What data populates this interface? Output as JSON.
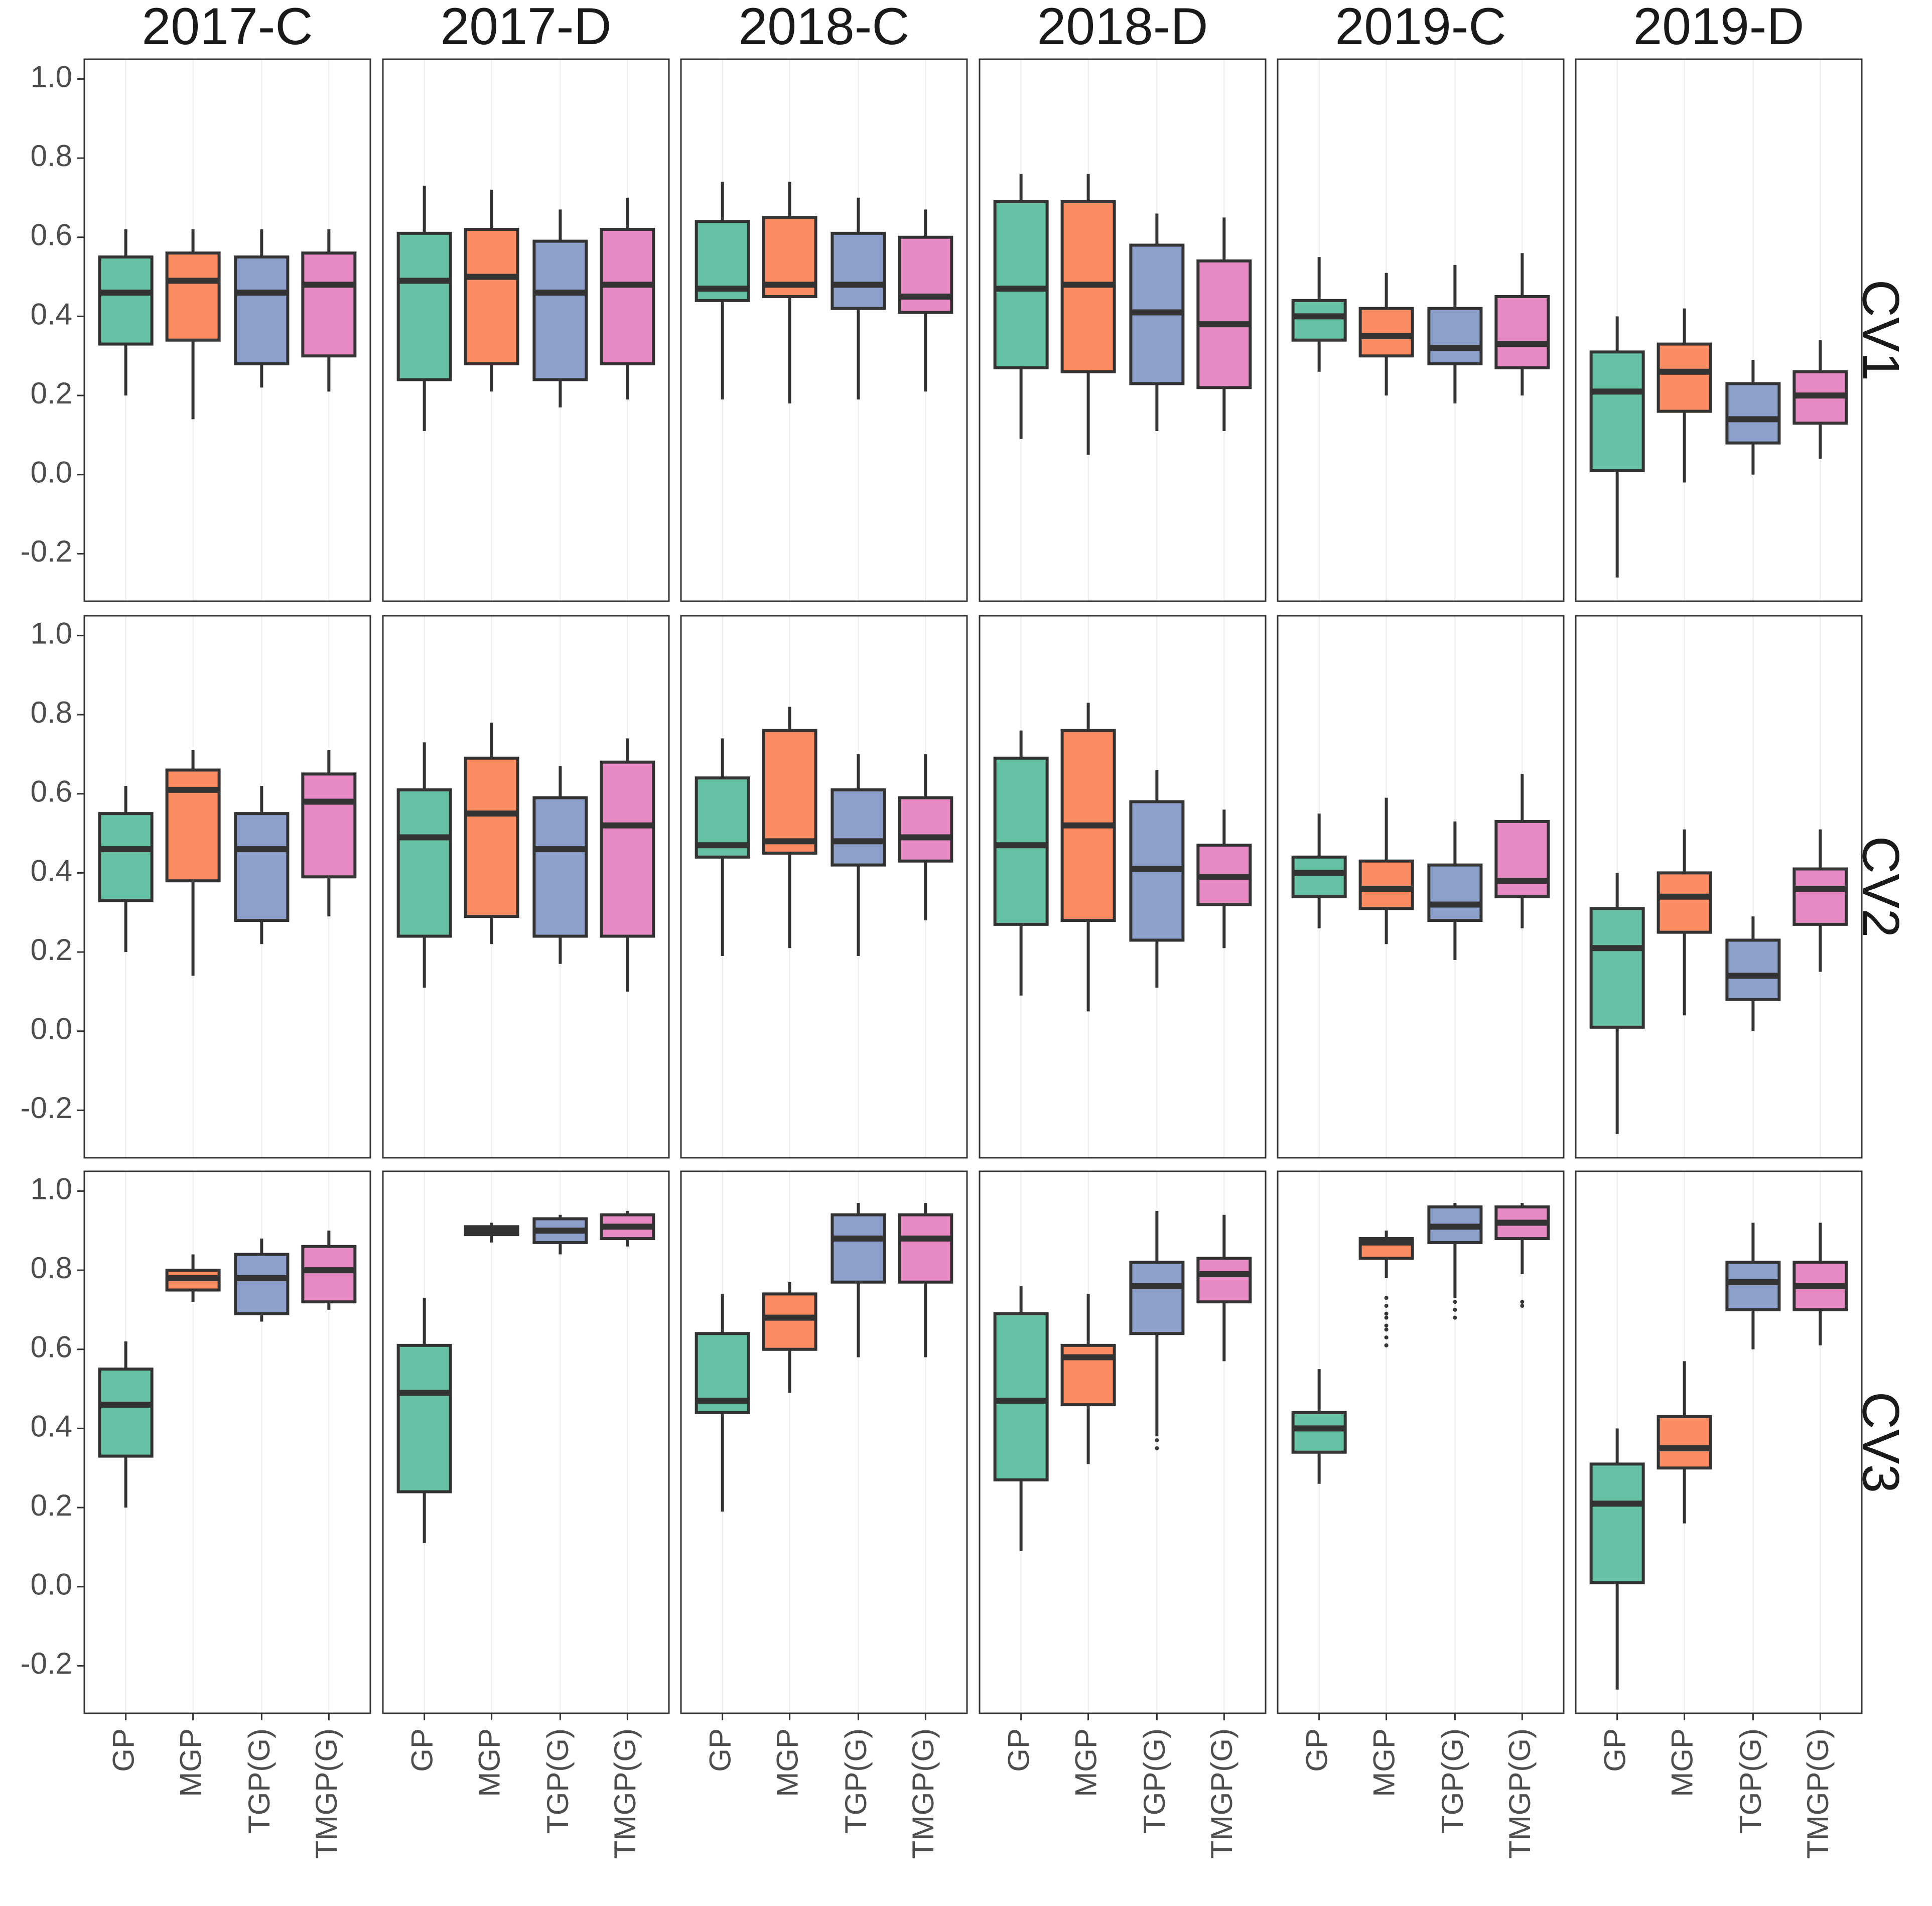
{
  "chart_data": {
    "type": "boxplot",
    "title": "",
    "xlabel": "",
    "ylabel": "",
    "ylim": [
      -0.32,
      1.05
    ],
    "yticks": [
      "-0.2",
      "0.0",
      "0.2",
      "0.4",
      "0.6",
      "0.8",
      "1.0"
    ],
    "columns": [
      "2017-C",
      "2017-D",
      "2018-C",
      "2018-D",
      "2019-C",
      "2019-D"
    ],
    "rows": [
      "CV1",
      "CV2",
      "CV3"
    ],
    "categories": [
      "GP",
      "MGP",
      "TGP(G)",
      "TMGP(G)"
    ],
    "colors": {
      "GP": "#66c2a5",
      "MGP": "#fc8d62",
      "TGP(G)": "#8da0cb",
      "TMGP(G)": "#e78ac3"
    },
    "panels": [
      {
        "row": "CV1",
        "column": "2017-C",
        "boxes": [
          {
            "category": "GP",
            "whisker_low": 0.2,
            "q1": 0.33,
            "median": 0.46,
            "q3": 0.55,
            "whisker_high": 0.62,
            "outliers": []
          },
          {
            "category": "MGP",
            "whisker_low": 0.14,
            "q1": 0.34,
            "median": 0.49,
            "q3": 0.56,
            "whisker_high": 0.62,
            "outliers": []
          },
          {
            "category": "TGP(G)",
            "whisker_low": 0.22,
            "q1": 0.28,
            "median": 0.46,
            "q3": 0.55,
            "whisker_high": 0.62,
            "outliers": []
          },
          {
            "category": "TMGP(G)",
            "whisker_low": 0.21,
            "q1": 0.3,
            "median": 0.48,
            "q3": 0.56,
            "whisker_high": 0.62,
            "outliers": []
          }
        ]
      },
      {
        "row": "CV1",
        "column": "2017-D",
        "boxes": [
          {
            "category": "GP",
            "whisker_low": 0.11,
            "q1": 0.24,
            "median": 0.49,
            "q3": 0.61,
            "whisker_high": 0.73,
            "outliers": []
          },
          {
            "category": "MGP",
            "whisker_low": 0.21,
            "q1": 0.28,
            "median": 0.5,
            "q3": 0.62,
            "whisker_high": 0.72,
            "outliers": []
          },
          {
            "category": "TGP(G)",
            "whisker_low": 0.17,
            "q1": 0.24,
            "median": 0.46,
            "q3": 0.59,
            "whisker_high": 0.67,
            "outliers": []
          },
          {
            "category": "TMGP(G)",
            "whisker_low": 0.19,
            "q1": 0.28,
            "median": 0.48,
            "q3": 0.62,
            "whisker_high": 0.7,
            "outliers": []
          }
        ]
      },
      {
        "row": "CV1",
        "column": "2018-C",
        "boxes": [
          {
            "category": "GP",
            "whisker_low": 0.19,
            "q1": 0.44,
            "median": 0.47,
            "q3": 0.64,
            "whisker_high": 0.74,
            "outliers": []
          },
          {
            "category": "MGP",
            "whisker_low": 0.18,
            "q1": 0.45,
            "median": 0.48,
            "q3": 0.65,
            "whisker_high": 0.74,
            "outliers": []
          },
          {
            "category": "TGP(G)",
            "whisker_low": 0.19,
            "q1": 0.42,
            "median": 0.48,
            "q3": 0.61,
            "whisker_high": 0.7,
            "outliers": []
          },
          {
            "category": "TMGP(G)",
            "whisker_low": 0.21,
            "q1": 0.41,
            "median": 0.45,
            "q3": 0.6,
            "whisker_high": 0.67,
            "outliers": []
          }
        ]
      },
      {
        "row": "CV1",
        "column": "2018-D",
        "boxes": [
          {
            "category": "GP",
            "whisker_low": 0.09,
            "q1": 0.27,
            "median": 0.47,
            "q3": 0.69,
            "whisker_high": 0.76,
            "outliers": []
          },
          {
            "category": "MGP",
            "whisker_low": 0.05,
            "q1": 0.26,
            "median": 0.48,
            "q3": 0.69,
            "whisker_high": 0.76,
            "outliers": []
          },
          {
            "category": "TGP(G)",
            "whisker_low": 0.11,
            "q1": 0.23,
            "median": 0.41,
            "q3": 0.58,
            "whisker_high": 0.66,
            "outliers": []
          },
          {
            "category": "TMGP(G)",
            "whisker_low": 0.11,
            "q1": 0.22,
            "median": 0.38,
            "q3": 0.54,
            "whisker_high": 0.65,
            "outliers": []
          }
        ]
      },
      {
        "row": "CV1",
        "column": "2019-C",
        "boxes": [
          {
            "category": "GP",
            "whisker_low": 0.26,
            "q1": 0.34,
            "median": 0.4,
            "q3": 0.44,
            "whisker_high": 0.55,
            "outliers": []
          },
          {
            "category": "MGP",
            "whisker_low": 0.2,
            "q1": 0.3,
            "median": 0.35,
            "q3": 0.42,
            "whisker_high": 0.51,
            "outliers": []
          },
          {
            "category": "TGP(G)",
            "whisker_low": 0.18,
            "q1": 0.28,
            "median": 0.32,
            "q3": 0.42,
            "whisker_high": 0.53,
            "outliers": []
          },
          {
            "category": "TMGP(G)",
            "whisker_low": 0.2,
            "q1": 0.27,
            "median": 0.33,
            "q3": 0.45,
            "whisker_high": 0.56,
            "outliers": []
          }
        ]
      },
      {
        "row": "CV1",
        "column": "2019-D",
        "boxes": [
          {
            "category": "GP",
            "whisker_low": -0.26,
            "q1": 0.01,
            "median": 0.21,
            "q3": 0.31,
            "whisker_high": 0.4,
            "outliers": []
          },
          {
            "category": "MGP",
            "whisker_low": -0.02,
            "q1": 0.16,
            "median": 0.26,
            "q3": 0.33,
            "whisker_high": 0.42,
            "outliers": []
          },
          {
            "category": "TGP(G)",
            "whisker_low": 0.0,
            "q1": 0.08,
            "median": 0.14,
            "q3": 0.23,
            "whisker_high": 0.29,
            "outliers": []
          },
          {
            "category": "TMGP(G)",
            "whisker_low": 0.04,
            "q1": 0.13,
            "median": 0.2,
            "q3": 0.26,
            "whisker_high": 0.34,
            "outliers": []
          }
        ]
      },
      {
        "row": "CV2",
        "column": "2017-C",
        "boxes": [
          {
            "category": "GP",
            "whisker_low": 0.2,
            "q1": 0.33,
            "median": 0.46,
            "q3": 0.55,
            "whisker_high": 0.62,
            "outliers": []
          },
          {
            "category": "MGP",
            "whisker_low": 0.14,
            "q1": 0.38,
            "median": 0.61,
            "q3": 0.66,
            "whisker_high": 0.71,
            "outliers": []
          },
          {
            "category": "TGP(G)",
            "whisker_low": 0.22,
            "q1": 0.28,
            "median": 0.46,
            "q3": 0.55,
            "whisker_high": 0.62,
            "outliers": []
          },
          {
            "category": "TMGP(G)",
            "whisker_low": 0.29,
            "q1": 0.39,
            "median": 0.58,
            "q3": 0.65,
            "whisker_high": 0.71,
            "outliers": []
          }
        ]
      },
      {
        "row": "CV2",
        "column": "2017-D",
        "boxes": [
          {
            "category": "GP",
            "whisker_low": 0.11,
            "q1": 0.24,
            "median": 0.49,
            "q3": 0.61,
            "whisker_high": 0.73,
            "outliers": []
          },
          {
            "category": "MGP",
            "whisker_low": 0.22,
            "q1": 0.29,
            "median": 0.55,
            "q3": 0.69,
            "whisker_high": 0.78,
            "outliers": []
          },
          {
            "category": "TGP(G)",
            "whisker_low": 0.17,
            "q1": 0.24,
            "median": 0.46,
            "q3": 0.59,
            "whisker_high": 0.67,
            "outliers": []
          },
          {
            "category": "TMGP(G)",
            "whisker_low": 0.1,
            "q1": 0.24,
            "median": 0.52,
            "q3": 0.68,
            "whisker_high": 0.74,
            "outliers": []
          }
        ]
      },
      {
        "row": "CV2",
        "column": "2018-C",
        "boxes": [
          {
            "category": "GP",
            "whisker_low": 0.19,
            "q1": 0.44,
            "median": 0.47,
            "q3": 0.64,
            "whisker_high": 0.74,
            "outliers": []
          },
          {
            "category": "MGP",
            "whisker_low": 0.21,
            "q1": 0.45,
            "median": 0.48,
            "q3": 0.76,
            "whisker_high": 0.82,
            "outliers": []
          },
          {
            "category": "TGP(G)",
            "whisker_low": 0.19,
            "q1": 0.42,
            "median": 0.48,
            "q3": 0.61,
            "whisker_high": 0.7,
            "outliers": []
          },
          {
            "category": "TMGP(G)",
            "whisker_low": 0.28,
            "q1": 0.43,
            "median": 0.49,
            "q3": 0.59,
            "whisker_high": 0.7,
            "outliers": []
          }
        ]
      },
      {
        "row": "CV2",
        "column": "2018-D",
        "boxes": [
          {
            "category": "GP",
            "whisker_low": 0.09,
            "q1": 0.27,
            "median": 0.47,
            "q3": 0.69,
            "whisker_high": 0.76,
            "outliers": []
          },
          {
            "category": "MGP",
            "whisker_low": 0.05,
            "q1": 0.28,
            "median": 0.52,
            "q3": 0.76,
            "whisker_high": 0.83,
            "outliers": []
          },
          {
            "category": "TGP(G)",
            "whisker_low": 0.11,
            "q1": 0.23,
            "median": 0.41,
            "q3": 0.58,
            "whisker_high": 0.66,
            "outliers": []
          },
          {
            "category": "TMGP(G)",
            "whisker_low": 0.21,
            "q1": 0.32,
            "median": 0.39,
            "q3": 0.47,
            "whisker_high": 0.56,
            "outliers": []
          }
        ]
      },
      {
        "row": "CV2",
        "column": "2019-C",
        "boxes": [
          {
            "category": "GP",
            "whisker_low": 0.26,
            "q1": 0.34,
            "median": 0.4,
            "q3": 0.44,
            "whisker_high": 0.55,
            "outliers": []
          },
          {
            "category": "MGP",
            "whisker_low": 0.22,
            "q1": 0.31,
            "median": 0.36,
            "q3": 0.43,
            "whisker_high": 0.59,
            "outliers": []
          },
          {
            "category": "TGP(G)",
            "whisker_low": 0.18,
            "q1": 0.28,
            "median": 0.32,
            "q3": 0.42,
            "whisker_high": 0.53,
            "outliers": []
          },
          {
            "category": "TMGP(G)",
            "whisker_low": 0.26,
            "q1": 0.34,
            "median": 0.38,
            "q3": 0.53,
            "whisker_high": 0.65,
            "outliers": []
          }
        ]
      },
      {
        "row": "CV2",
        "column": "2019-D",
        "boxes": [
          {
            "category": "GP",
            "whisker_low": -0.26,
            "q1": 0.01,
            "median": 0.21,
            "q3": 0.31,
            "whisker_high": 0.4,
            "outliers": []
          },
          {
            "category": "MGP",
            "whisker_low": 0.04,
            "q1": 0.25,
            "median": 0.34,
            "q3": 0.4,
            "whisker_high": 0.51,
            "outliers": []
          },
          {
            "category": "TGP(G)",
            "whisker_low": 0.0,
            "q1": 0.08,
            "median": 0.14,
            "q3": 0.23,
            "whisker_high": 0.29,
            "outliers": []
          },
          {
            "category": "TMGP(G)",
            "whisker_low": 0.15,
            "q1": 0.27,
            "median": 0.36,
            "q3": 0.41,
            "whisker_high": 0.51,
            "outliers": []
          }
        ]
      },
      {
        "row": "CV3",
        "column": "2017-C",
        "boxes": [
          {
            "category": "GP",
            "whisker_low": 0.2,
            "q1": 0.33,
            "median": 0.46,
            "q3": 0.55,
            "whisker_high": 0.62,
            "outliers": []
          },
          {
            "category": "MGP",
            "whisker_low": 0.72,
            "q1": 0.75,
            "median": 0.78,
            "q3": 0.8,
            "whisker_high": 0.84,
            "outliers": []
          },
          {
            "category": "TGP(G)",
            "whisker_low": 0.67,
            "q1": 0.69,
            "median": 0.78,
            "q3": 0.84,
            "whisker_high": 0.88,
            "outliers": []
          },
          {
            "category": "TMGP(G)",
            "whisker_low": 0.7,
            "q1": 0.72,
            "median": 0.8,
            "q3": 0.86,
            "whisker_high": 0.9,
            "outliers": []
          }
        ]
      },
      {
        "row": "CV3",
        "column": "2017-D",
        "boxes": [
          {
            "category": "GP",
            "whisker_low": 0.11,
            "q1": 0.24,
            "median": 0.49,
            "q3": 0.61,
            "whisker_high": 0.73,
            "outliers": []
          },
          {
            "category": "MGP",
            "whisker_low": 0.87,
            "q1": 0.89,
            "median": 0.9,
            "q3": 0.91,
            "whisker_high": 0.92,
            "outliers": []
          },
          {
            "category": "TGP(G)",
            "whisker_low": 0.84,
            "q1": 0.87,
            "median": 0.9,
            "q3": 0.93,
            "whisker_high": 0.94,
            "outliers": []
          },
          {
            "category": "TMGP(G)",
            "whisker_low": 0.86,
            "q1": 0.88,
            "median": 0.91,
            "q3": 0.94,
            "whisker_high": 0.95,
            "outliers": []
          }
        ]
      },
      {
        "row": "CV3",
        "column": "2018-C",
        "boxes": [
          {
            "category": "GP",
            "whisker_low": 0.19,
            "q1": 0.44,
            "median": 0.47,
            "q3": 0.64,
            "whisker_high": 0.74,
            "outliers": []
          },
          {
            "category": "MGP",
            "whisker_low": 0.49,
            "q1": 0.6,
            "median": 0.68,
            "q3": 0.74,
            "whisker_high": 0.77,
            "outliers": []
          },
          {
            "category": "TGP(G)",
            "whisker_low": 0.58,
            "q1": 0.77,
            "median": 0.88,
            "q3": 0.94,
            "whisker_high": 0.97,
            "outliers": []
          },
          {
            "category": "TMGP(G)",
            "whisker_low": 0.58,
            "q1": 0.77,
            "median": 0.88,
            "q3": 0.94,
            "whisker_high": 0.97,
            "outliers": []
          }
        ]
      },
      {
        "row": "CV3",
        "column": "2018-D",
        "boxes": [
          {
            "category": "GP",
            "whisker_low": 0.09,
            "q1": 0.27,
            "median": 0.47,
            "q3": 0.69,
            "whisker_high": 0.76,
            "outliers": []
          },
          {
            "category": "MGP",
            "whisker_low": 0.31,
            "q1": 0.46,
            "median": 0.58,
            "q3": 0.61,
            "whisker_high": 0.74,
            "outliers": []
          },
          {
            "category": "TGP(G)",
            "whisker_low": 0.38,
            "q1": 0.64,
            "median": 0.76,
            "q3": 0.82,
            "whisker_high": 0.95,
            "outliers": [
              0.35,
              0.37
            ]
          },
          {
            "category": "TMGP(G)",
            "whisker_low": 0.57,
            "q1": 0.72,
            "median": 0.79,
            "q3": 0.83,
            "whisker_high": 0.94,
            "outliers": []
          }
        ]
      },
      {
        "row": "CV3",
        "column": "2019-C",
        "boxes": [
          {
            "category": "GP",
            "whisker_low": 0.26,
            "q1": 0.34,
            "median": 0.4,
            "q3": 0.44,
            "whisker_high": 0.55,
            "outliers": []
          },
          {
            "category": "MGP",
            "whisker_low": 0.78,
            "q1": 0.83,
            "median": 0.87,
            "q3": 0.88,
            "whisker_high": 0.9,
            "outliers": [
              0.61,
              0.63,
              0.65,
              0.66,
              0.68,
              0.69,
              0.71,
              0.73
            ]
          },
          {
            "category": "TGP(G)",
            "whisker_low": 0.73,
            "q1": 0.87,
            "median": 0.91,
            "q3": 0.96,
            "whisker_high": 0.97,
            "outliers": [
              0.68,
              0.7,
              0.72
            ]
          },
          {
            "category": "TMGP(G)",
            "whisker_low": 0.79,
            "q1": 0.88,
            "median": 0.92,
            "q3": 0.96,
            "whisker_high": 0.97,
            "outliers": [
              0.71,
              0.72
            ]
          }
        ]
      },
      {
        "row": "CV3",
        "column": "2019-D",
        "boxes": [
          {
            "category": "GP",
            "whisker_low": -0.26,
            "q1": 0.01,
            "median": 0.21,
            "q3": 0.31,
            "whisker_high": 0.4,
            "outliers": []
          },
          {
            "category": "MGP",
            "whisker_low": 0.16,
            "q1": 0.3,
            "median": 0.35,
            "q3": 0.43,
            "whisker_high": 0.57,
            "outliers": []
          },
          {
            "category": "TGP(G)",
            "whisker_low": 0.6,
            "q1": 0.7,
            "median": 0.77,
            "q3": 0.82,
            "whisker_high": 0.92,
            "outliers": []
          },
          {
            "category": "TMGP(G)",
            "whisker_low": 0.61,
            "q1": 0.7,
            "median": 0.76,
            "q3": 0.82,
            "whisker_high": 0.92,
            "outliers": []
          }
        ]
      }
    ]
  }
}
